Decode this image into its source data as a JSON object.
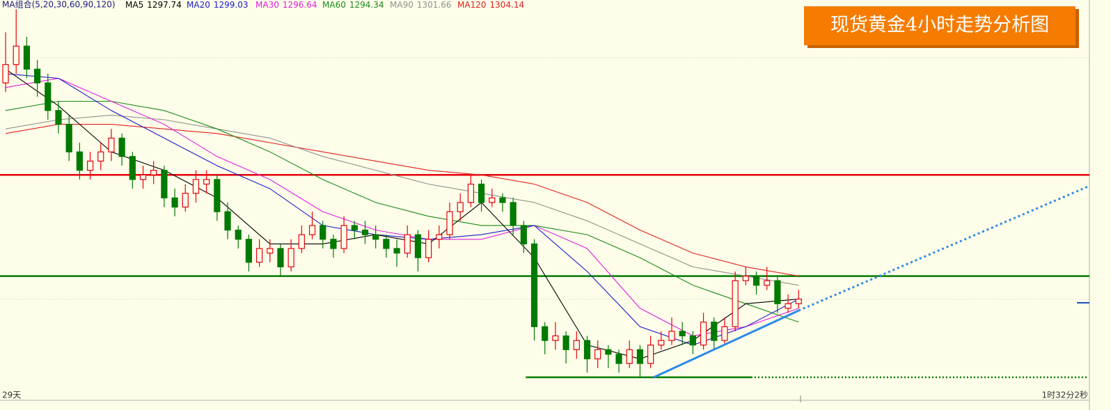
{
  "chart_data": {
    "type": "candlestick",
    "title": "现货黄金4小时走势分析图",
    "legend_title": "MA组合(5,20,30,60,90,120)",
    "footer_left": "29天",
    "footer_right": "1时32分2秒",
    "ylim": [
      1277,
      1361
    ],
    "xlim": [
      -0.2,
      102.5
    ],
    "up_color": "#e8000b",
    "down_color": "#007a00",
    "candles": [
      [
        1346,
        1357,
        1344,
        1350
      ],
      [
        1350,
        1362,
        1348,
        1354
      ],
      [
        1354,
        1356,
        1347,
        1349
      ],
      [
        1349,
        1351,
        1343,
        1346
      ],
      [
        1346,
        1348,
        1338,
        1340
      ],
      [
        1340,
        1342,
        1335,
        1337
      ],
      [
        1337,
        1339,
        1329,
        1331
      ],
      [
        1331,
        1333,
        1325,
        1327
      ],
      [
        1327,
        1331,
        1325,
        1329
      ],
      [
        1329,
        1333,
        1327,
        1331
      ],
      [
        1331,
        1336,
        1329,
        1334
      ],
      [
        1334,
        1335,
        1328,
        1330
      ],
      [
        1330,
        1331,
        1323,
        1325
      ],
      [
        1325,
        1328,
        1323,
        1326
      ],
      [
        1326,
        1329,
        1324,
        1327
      ],
      [
        1327,
        1328,
        1319,
        1321
      ],
      [
        1321,
        1323,
        1317,
        1319
      ],
      [
        1319,
        1324,
        1318,
        1322
      ],
      [
        1322,
        1327,
        1320,
        1325
      ],
      [
        1324,
        1327,
        1322,
        1325
      ],
      [
        1325,
        1326,
        1316,
        1318
      ],
      [
        1318,
        1320,
        1312,
        1314
      ],
      [
        1314,
        1315,
        1310,
        1312
      ],
      [
        1312,
        1313,
        1305,
        1307
      ],
      [
        1307,
        1312,
        1306,
        1310
      ],
      [
        1309,
        1312,
        1307,
        1310
      ],
      [
        1310,
        1311,
        1304,
        1306
      ],
      [
        1306,
        1312,
        1305,
        1310
      ],
      [
        1310,
        1315,
        1309,
        1313
      ],
      [
        1313,
        1318,
        1312,
        1315
      ],
      [
        1315,
        1316,
        1310,
        1312
      ],
      [
        1312,
        1313,
        1308,
        1310
      ],
      [
        1310,
        1317,
        1309,
        1315
      ],
      [
        1315,
        1316,
        1312,
        1314
      ],
      [
        1314,
        1316,
        1311,
        1313
      ],
      [
        1313,
        1315,
        1310,
        1312
      ],
      [
        1312,
        1313,
        1308,
        1310
      ],
      [
        1310,
        1312,
        1306,
        1309
      ],
      [
        1309,
        1315,
        1308,
        1313
      ],
      [
        1313,
        1314,
        1305,
        1308
      ],
      [
        1308,
        1314,
        1307,
        1312
      ],
      [
        1312,
        1315,
        1310,
        1313
      ],
      [
        1313,
        1320,
        1312,
        1318
      ],
      [
        1318,
        1322,
        1316,
        1320
      ],
      [
        1320,
        1326,
        1319,
        1324
      ],
      [
        1324,
        1325,
        1318,
        1320
      ],
      [
        1320,
        1323,
        1319,
        1321
      ],
      [
        1321,
        1322,
        1318,
        1320
      ],
      [
        1320,
        1321,
        1313,
        1315
      ],
      [
        1315,
        1316,
        1309,
        1311
      ],
      [
        1311,
        1312,
        1290,
        1293
      ],
      [
        1293,
        1294,
        1287,
        1290
      ],
      [
        1290,
        1294,
        1288,
        1291
      ],
      [
        1291,
        1292,
        1285,
        1288
      ],
      [
        1288,
        1292,
        1286,
        1290
      ],
      [
        1290,
        1291,
        1283,
        1286
      ],
      [
        1286,
        1290,
        1284,
        1288
      ],
      [
        1288,
        1289,
        1284,
        1287
      ],
      [
        1287,
        1288,
        1283,
        1285
      ],
      [
        1285,
        1290,
        1284,
        1288
      ],
      [
        1288,
        1289,
        1282,
        1285
      ],
      [
        1285,
        1291,
        1284,
        1289
      ],
      [
        1289,
        1292,
        1288,
        1290
      ],
      [
        1290,
        1295,
        1289,
        1292
      ],
      [
        1292,
        1294,
        1289,
        1291
      ],
      [
        1291,
        1292,
        1287,
        1289
      ],
      [
        1289,
        1296,
        1288,
        1294
      ],
      [
        1294,
        1295,
        1288,
        1290
      ],
      [
        1290,
        1295,
        1289,
        1293
      ],
      [
        1293,
        1305,
        1292,
        1303
      ],
      [
        1303,
        1306,
        1302,
        1304
      ],
      [
        1304,
        1305,
        1300,
        1302
      ],
      [
        1302,
        1306,
        1301,
        1303
      ],
      [
        1303,
        1304,
        1296,
        1298
      ],
      [
        1297,
        1300,
        1296,
        1298
      ],
      [
        1298,
        1301,
        1297,
        1299
      ]
    ],
    "ma_x": [
      0,
      5,
      10,
      15,
      20,
      25,
      30,
      35,
      40,
      45,
      50,
      55,
      60,
      65,
      70,
      75
    ],
    "series": [
      {
        "name": "MA5",
        "last": 1297.74,
        "color": "#000000",
        "values": [
          1349,
          1341,
          1331,
          1327,
          1321,
          1311,
          1311,
          1313,
          1311,
          1320,
          1308,
          1289,
          1286,
          1290,
          1298,
          1299
        ]
      },
      {
        "name": "MA20",
        "last": 1299.03,
        "color": "#1a1acc",
        "values": [
          1348,
          1347,
          1340,
          1334,
          1328,
          1323,
          1315,
          1313,
          1312,
          1313,
          1315,
          1305,
          1293,
          1289,
          1293,
          1299
        ]
      },
      {
        "name": "MA30",
        "last": 1296.64,
        "color": "#e020e0",
        "values": [
          1345,
          1347,
          1342,
          1337,
          1330,
          1325,
          1318,
          1314,
          1312,
          1312,
          1315,
          1310,
          1297,
          1291,
          1293,
          1297
        ]
      },
      {
        "name": "MA60",
        "last": 1294.34,
        "color": "#1a8a1a",
        "values": [
          1340,
          1342,
          1342,
          1340,
          1336,
          1331,
          1325,
          1320,
          1317,
          1315,
          1315,
          1313,
          1308,
          1302,
          1298,
          1294
        ]
      },
      {
        "name": "MA90",
        "last": 1301.66,
        "color": "#909090",
        "values": [
          1336,
          1338,
          1339,
          1338,
          1336,
          1334,
          1330,
          1327,
          1324,
          1322,
          1320,
          1316,
          1311,
          1306,
          1304,
          1302
        ]
      },
      {
        "name": "MA120",
        "last": 1304.14,
        "color": "#e02020",
        "values": [
          1335,
          1337,
          1337,
          1336,
          1335,
          1333,
          1331,
          1329,
          1327,
          1326,
          1324,
          1320,
          1314,
          1309,
          1306,
          1304
        ]
      }
    ],
    "levels": [
      {
        "value": 1326,
        "color": "#e8000b"
      },
      {
        "value": 1304,
        "color": "#007a00"
      }
    ],
    "support": {
      "value": 1282,
      "x": [
        49.2,
        70.5,
        102.4
      ],
      "color": "#007a00"
    },
    "trendline": {
      "x": [
        61.3,
        75,
        102.4
      ],
      "values": [
        1282,
        1296.5,
        1323.5
      ],
      "color": "#2b8ae8"
    }
  }
}
